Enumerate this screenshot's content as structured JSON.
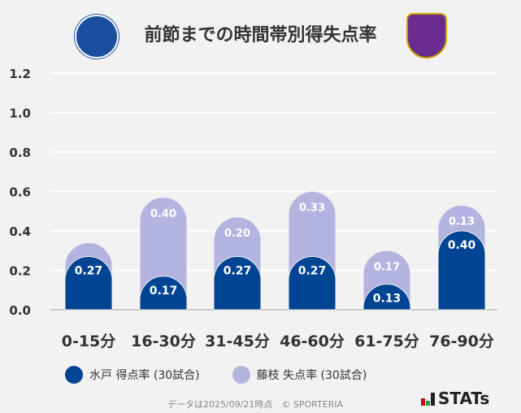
{
  "chart_data": {
    "type": "bar",
    "stacked": true,
    "title": "前節までの時間帯別得失点率",
    "categories": [
      "0-15分",
      "16-30分",
      "31-45分",
      "46-60分",
      "61-75分",
      "76-90分"
    ],
    "series": [
      {
        "name": "水戸 得点率 (30試合)",
        "color": "#004494",
        "values": [
          0.27,
          0.17,
          0.27,
          0.27,
          0.13,
          0.4
        ],
        "labels": [
          "0.27",
          "0.17",
          "0.27",
          "0.27",
          "0.13",
          "0.40"
        ]
      },
      {
        "name": "藤枝 失点率 (30試合)",
        "color": "#b4b4e0",
        "values": [
          0.07,
          0.4,
          0.2,
          0.33,
          0.17,
          0.13
        ],
        "labels": [
          "",
          "0.40",
          "0.20",
          "0.33",
          "0.17",
          "0.13"
        ]
      }
    ],
    "ylim": [
      0,
      1.2
    ],
    "yticks": [
      "0.0",
      "0.2",
      "0.4",
      "0.6",
      "0.8",
      "1.0",
      "1.2"
    ],
    "grid": true,
    "legend": "bottom"
  },
  "footer": "データは2025/09/21時点　© SPORTERIA",
  "brand": "STATs",
  "logos": {
    "left": "MITO HOLLYHOCK",
    "right": "FUJIEDA MYFC"
  }
}
